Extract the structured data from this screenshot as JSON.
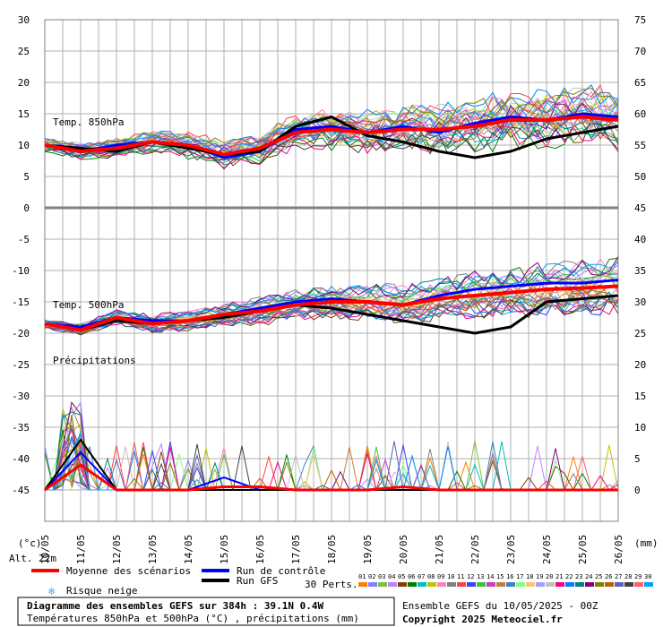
{
  "chart_data": {
    "type": "line",
    "x": [
      "10/05",
      "11/05",
      "12/05",
      "13/05",
      "14/05",
      "15/05",
      "16/05",
      "17/05",
      "18/05",
      "19/05",
      "20/05",
      "21/05",
      "22/05",
      "23/05",
      "24/05",
      "25/05",
      "26/05"
    ],
    "y_left": {
      "ticks": [
        30,
        25,
        20,
        15,
        10,
        5,
        0,
        -5,
        -10,
        -15,
        -20,
        -25,
        -30,
        -35,
        -40,
        -45
      ],
      "unit": "(°c)"
    },
    "y_right": {
      "ticks": [
        75,
        70,
        65,
        60,
        55,
        50,
        45,
        40,
        35,
        30,
        25,
        20,
        15,
        10,
        5,
        0
      ],
      "unit": "(mm)"
    },
    "panel_labels": {
      "t850": "Temp. 850hPa",
      "t500": "Temp. 500hPa",
      "precip": "Précipitations"
    },
    "series": [
      {
        "name": "Moyenne des scénarios",
        "role": "mean",
        "color": "#ff0000",
        "t850": [
          10,
          9,
          9.5,
          10.5,
          10,
          8.5,
          9.5,
          12,
          12.5,
          12,
          12.5,
          12.5,
          13,
          14,
          14,
          14.5,
          14
        ],
        "t500": [
          -18.5,
          -19.5,
          -17.5,
          -18.5,
          -18,
          -17,
          -16.5,
          -15.5,
          -15,
          -15,
          -15.5,
          -14.5,
          -14,
          -13.5,
          -13,
          -12.8,
          -12.5
        ],
        "precip": [
          0,
          4,
          0,
          0,
          0,
          0.5,
          0.5,
          0,
          0,
          0,
          0.5,
          0,
          0,
          0,
          0,
          0,
          0
        ]
      },
      {
        "name": "Run de contrôle",
        "role": "control",
        "color": "#0000ff",
        "t850": [
          10,
          9,
          10,
          10.5,
          10,
          8,
          9,
          12.5,
          13,
          12,
          13,
          12,
          13.5,
          14.5,
          14,
          15,
          14.5
        ],
        "t500": [
          -18.5,
          -19,
          -17.5,
          -18,
          -18,
          -17,
          -16,
          -15,
          -14.5,
          -15,
          -15.5,
          -14,
          -13,
          -12.5,
          -12,
          -12,
          -11.5
        ],
        "precip": [
          0,
          6,
          0,
          0,
          0,
          2,
          0,
          0,
          0,
          0,
          0,
          0,
          0,
          0,
          0,
          0,
          0
        ]
      },
      {
        "name": "Run GFS",
        "role": "gfs",
        "color": "#000000",
        "t850": [
          10,
          9.5,
          9,
          10.5,
          9.5,
          8.5,
          9,
          13,
          14.5,
          11.5,
          10.5,
          9,
          8,
          9,
          11,
          12,
          13
        ],
        "t500": [
          -18.5,
          -19.5,
          -18,
          -18.5,
          -18,
          -17.5,
          -16.5,
          -15.5,
          -16,
          -17,
          -18,
          -19,
          -20,
          -19,
          -15,
          -14.5,
          -14
        ],
        "precip": [
          0,
          8,
          0,
          0,
          0,
          0,
          0,
          0,
          0,
          0,
          0,
          0,
          0,
          0,
          0,
          0,
          0
        ]
      }
    ],
    "perturbations_label": "30 Perts.",
    "perturbation_numbers": [
      "01",
      "02",
      "03",
      "04",
      "05",
      "06",
      "07",
      "08",
      "09",
      "10",
      "11",
      "12",
      "13",
      "14",
      "15",
      "16",
      "17",
      "18",
      "19",
      "20",
      "21",
      "22",
      "23",
      "24",
      "25",
      "26",
      "27",
      "28",
      "29",
      "30"
    ],
    "perturbation_colors": [
      "#ff8000",
      "#8080ff",
      "#80c040",
      "#c080ff",
      "#804000",
      "#008000",
      "#00c0c0",
      "#c0c000",
      "#ff80c0",
      "#808080",
      "#ff4040",
      "#4040ff",
      "#40c040",
      "#c040c0",
      "#c08040",
      "#4080c0",
      "#80ff80",
      "#ffc080",
      "#a0a0ff",
      "#c0c0c0",
      "#ff0080",
      "#0080ff",
      "#008080",
      "#800080",
      "#808000",
      "#c06000",
      "#6060c0",
      "#404040",
      "#ff6060",
      "#00a0ff"
    ],
    "risk_label": "Risque neige"
  },
  "footer": {
    "altitude": "Alt. 22m",
    "title": "Diagramme des ensembles GEFS sur 384h : 39.1N 0.4W",
    "subtitle": "Températures 850hPa et 500hPa (°C) , précipitations (mm)",
    "run": "Ensemble GEFS du 10/05/2025 - 00Z",
    "copyright": "Copyright 2025 Meteociel.fr"
  },
  "colors": {
    "grid": "#b0b0b0",
    "frame": "#808080"
  }
}
